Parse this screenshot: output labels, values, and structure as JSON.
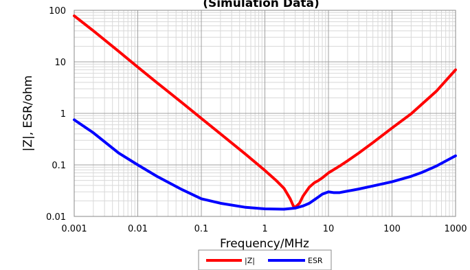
{
  "chart_data": {
    "type": "line",
    "title": "(Simulation Data)",
    "xlabel": "Frequency/MHz",
    "ylabel": "|Z|, ESR/ohm",
    "x_scale": "log",
    "y_scale": "log",
    "xlim": [
      0.001,
      1000
    ],
    "ylim": [
      0.01,
      100
    ],
    "x_ticks": [
      "0.001",
      "0.01",
      "0.1",
      "1",
      "10",
      "100",
      "1000"
    ],
    "y_ticks": [
      "0.01",
      "0.1",
      "1",
      "10",
      "100"
    ],
    "grid": true,
    "legend_position": "bottom",
    "series": [
      {
        "name": "|Z|",
        "color": "#ff0000",
        "x": [
          0.001,
          0.002,
          0.005,
          0.01,
          0.02,
          0.05,
          0.1,
          0.2,
          0.5,
          1,
          1.5,
          2,
          2.5,
          2.8,
          3,
          3.5,
          4,
          5,
          6,
          7,
          8,
          10,
          15,
          20,
          30,
          50,
          100,
          200,
          500,
          1000
        ],
        "y": [
          78,
          40,
          16,
          7.9,
          3.95,
          1.6,
          0.8,
          0.4,
          0.16,
          0.078,
          0.05,
          0.035,
          0.022,
          0.016,
          0.015,
          0.018,
          0.025,
          0.037,
          0.045,
          0.05,
          0.056,
          0.07,
          0.095,
          0.12,
          0.17,
          0.27,
          0.52,
          0.98,
          2.7,
          7
        ]
      },
      {
        "name": "ESR",
        "color": "#0000ff",
        "x": [
          0.001,
          0.002,
          0.005,
          0.01,
          0.02,
          0.05,
          0.1,
          0.2,
          0.5,
          1,
          2,
          3,
          4,
          5,
          6,
          7,
          8,
          10,
          12,
          15,
          20,
          30,
          50,
          100,
          200,
          300,
          500,
          1000
        ],
        "y": [
          0.75,
          0.42,
          0.17,
          0.1,
          0.06,
          0.033,
          0.022,
          0.018,
          0.015,
          0.014,
          0.0138,
          0.0145,
          0.016,
          0.018,
          0.021,
          0.024,
          0.027,
          0.03,
          0.029,
          0.029,
          0.031,
          0.034,
          0.039,
          0.047,
          0.06,
          0.072,
          0.095,
          0.15
        ]
      }
    ]
  }
}
